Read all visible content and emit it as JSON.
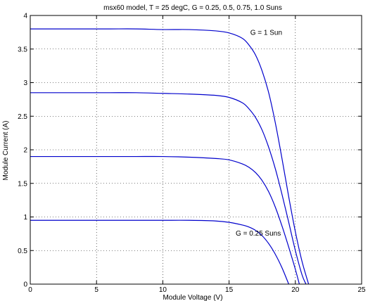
{
  "chart_data": {
    "type": "line",
    "title": "msx60 model, T = 25 degC, G = 0.25, 0.5, 0.75, 1.0 Suns",
    "xlabel": "Module Voltage (V)",
    "ylabel": "Module Current (A)",
    "xlim": [
      0,
      25
    ],
    "ylim": [
      0,
      4
    ],
    "xticks": [
      0,
      5,
      10,
      15,
      20,
      25
    ],
    "yticks": [
      0,
      0.5,
      1,
      1.5,
      2,
      2.5,
      3,
      3.5,
      4
    ],
    "xtick_labels": [
      "0",
      "5",
      "10",
      "15",
      "20",
      "25"
    ],
    "ytick_labels": [
      "0",
      "0.5",
      "1",
      "1.5",
      "2",
      "2.5",
      "3",
      "3.5",
      "4"
    ],
    "grid": true,
    "line_color": "#0000cc",
    "series": [
      {
        "x": [
          0,
          2,
          4,
          6,
          8,
          10,
          12,
          14,
          15,
          16,
          16.5,
          17,
          17.5,
          18,
          18.5,
          19,
          19.5,
          20,
          20.5,
          21.0
        ],
        "y": [
          3.8,
          3.8,
          3.8,
          3.8,
          3.8,
          3.79,
          3.79,
          3.77,
          3.74,
          3.66,
          3.56,
          3.41,
          3.17,
          2.84,
          2.39,
          1.86,
          1.3,
          0.78,
          0.34,
          0
        ]
      },
      {
        "x": [
          0,
          2,
          4,
          6,
          8,
          10,
          12,
          14,
          15,
          16,
          16.5,
          17,
          17.5,
          18,
          18.5,
          19,
          19.5,
          20,
          20.5,
          20.8
        ],
        "y": [
          2.85,
          2.85,
          2.85,
          2.85,
          2.85,
          2.84,
          2.83,
          2.81,
          2.78,
          2.7,
          2.61,
          2.48,
          2.29,
          2.03,
          1.71,
          1.33,
          0.92,
          0.5,
          0.14,
          0
        ]
      },
      {
        "x": [
          0,
          2,
          4,
          6,
          8,
          10,
          12,
          14,
          15,
          16,
          16.5,
          17,
          17.5,
          18,
          18.5,
          19,
          19.5,
          20,
          20.3
        ],
        "y": [
          1.9,
          1.9,
          1.9,
          1.9,
          1.9,
          1.9,
          1.89,
          1.87,
          1.85,
          1.79,
          1.74,
          1.66,
          1.54,
          1.37,
          1.14,
          0.86,
          0.55,
          0.22,
          0
        ]
      },
      {
        "x": [
          0,
          2,
          4,
          6,
          8,
          10,
          12,
          14,
          15,
          16,
          16.5,
          17,
          17.5,
          18,
          18.5,
          19,
          19.5
        ],
        "y": [
          0.95,
          0.95,
          0.95,
          0.95,
          0.95,
          0.95,
          0.95,
          0.94,
          0.92,
          0.88,
          0.85,
          0.8,
          0.72,
          0.6,
          0.44,
          0.24,
          0
        ]
      }
    ],
    "annotations": [
      {
        "text": "G = 1 Sun",
        "x": 16.6,
        "y": 3.71
      },
      {
        "text": "G = 0.25 Suns",
        "x": 15.5,
        "y": 0.72
      }
    ]
  }
}
